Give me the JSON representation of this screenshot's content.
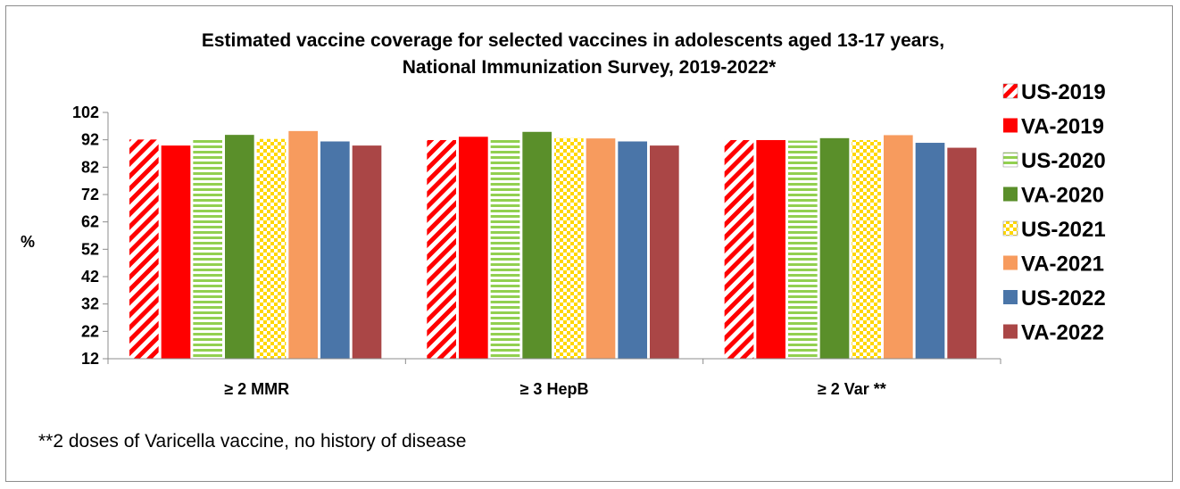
{
  "chart_data": {
    "type": "bar",
    "title": "Estimated vaccine coverage for selected vaccines in adolescents aged 13-17 years,",
    "subtitle": "National Immunization Survey, 2019-2022*",
    "xlabel": "",
    "ylabel": "%",
    "ylim": [
      12,
      102
    ],
    "yticks": [
      12,
      22,
      32,
      42,
      52,
      62,
      72,
      82,
      92,
      102
    ],
    "categories": [
      "≥ 2 MMR",
      "≥ 3 HepB",
      "≥ 2 Var **"
    ],
    "grid": false,
    "legend_position": "right",
    "series": [
      {
        "name": "US-2019",
        "values": [
          92.1,
          91.9,
          91.9
        ],
        "color": "#ff0000",
        "pattern": "diagonal-stripes"
      },
      {
        "name": "VA-2019",
        "values": [
          89.9,
          93.1,
          91.9
        ],
        "color": "#ff0000",
        "pattern": "solid"
      },
      {
        "name": "US-2020",
        "values": [
          92.3,
          92.6,
          91.7
        ],
        "color": "#92d050",
        "pattern": "horizontal-stripes"
      },
      {
        "name": "VA-2020",
        "values": [
          93.8,
          94.9,
          92.6
        ],
        "color": "#5a8f2a",
        "pattern": "solid"
      },
      {
        "name": "US-2021",
        "values": [
          92.3,
          92.6,
          91.9
        ],
        "color": "#ffd700",
        "pattern": "checker"
      },
      {
        "name": "VA-2021",
        "values": [
          95.2,
          92.5,
          93.7
        ],
        "color": "#f79b5e",
        "pattern": "solid"
      },
      {
        "name": "US-2022",
        "values": [
          91.4,
          91.4,
          90.9
        ],
        "color": "#4a75a8",
        "pattern": "solid"
      },
      {
        "name": "VA-2022",
        "values": [
          89.9,
          89.9,
          89.1
        ],
        "color": "#aa4646",
        "pattern": "solid"
      }
    ],
    "footnote": "**2 doses of Varicella vaccine, no history of disease"
  }
}
